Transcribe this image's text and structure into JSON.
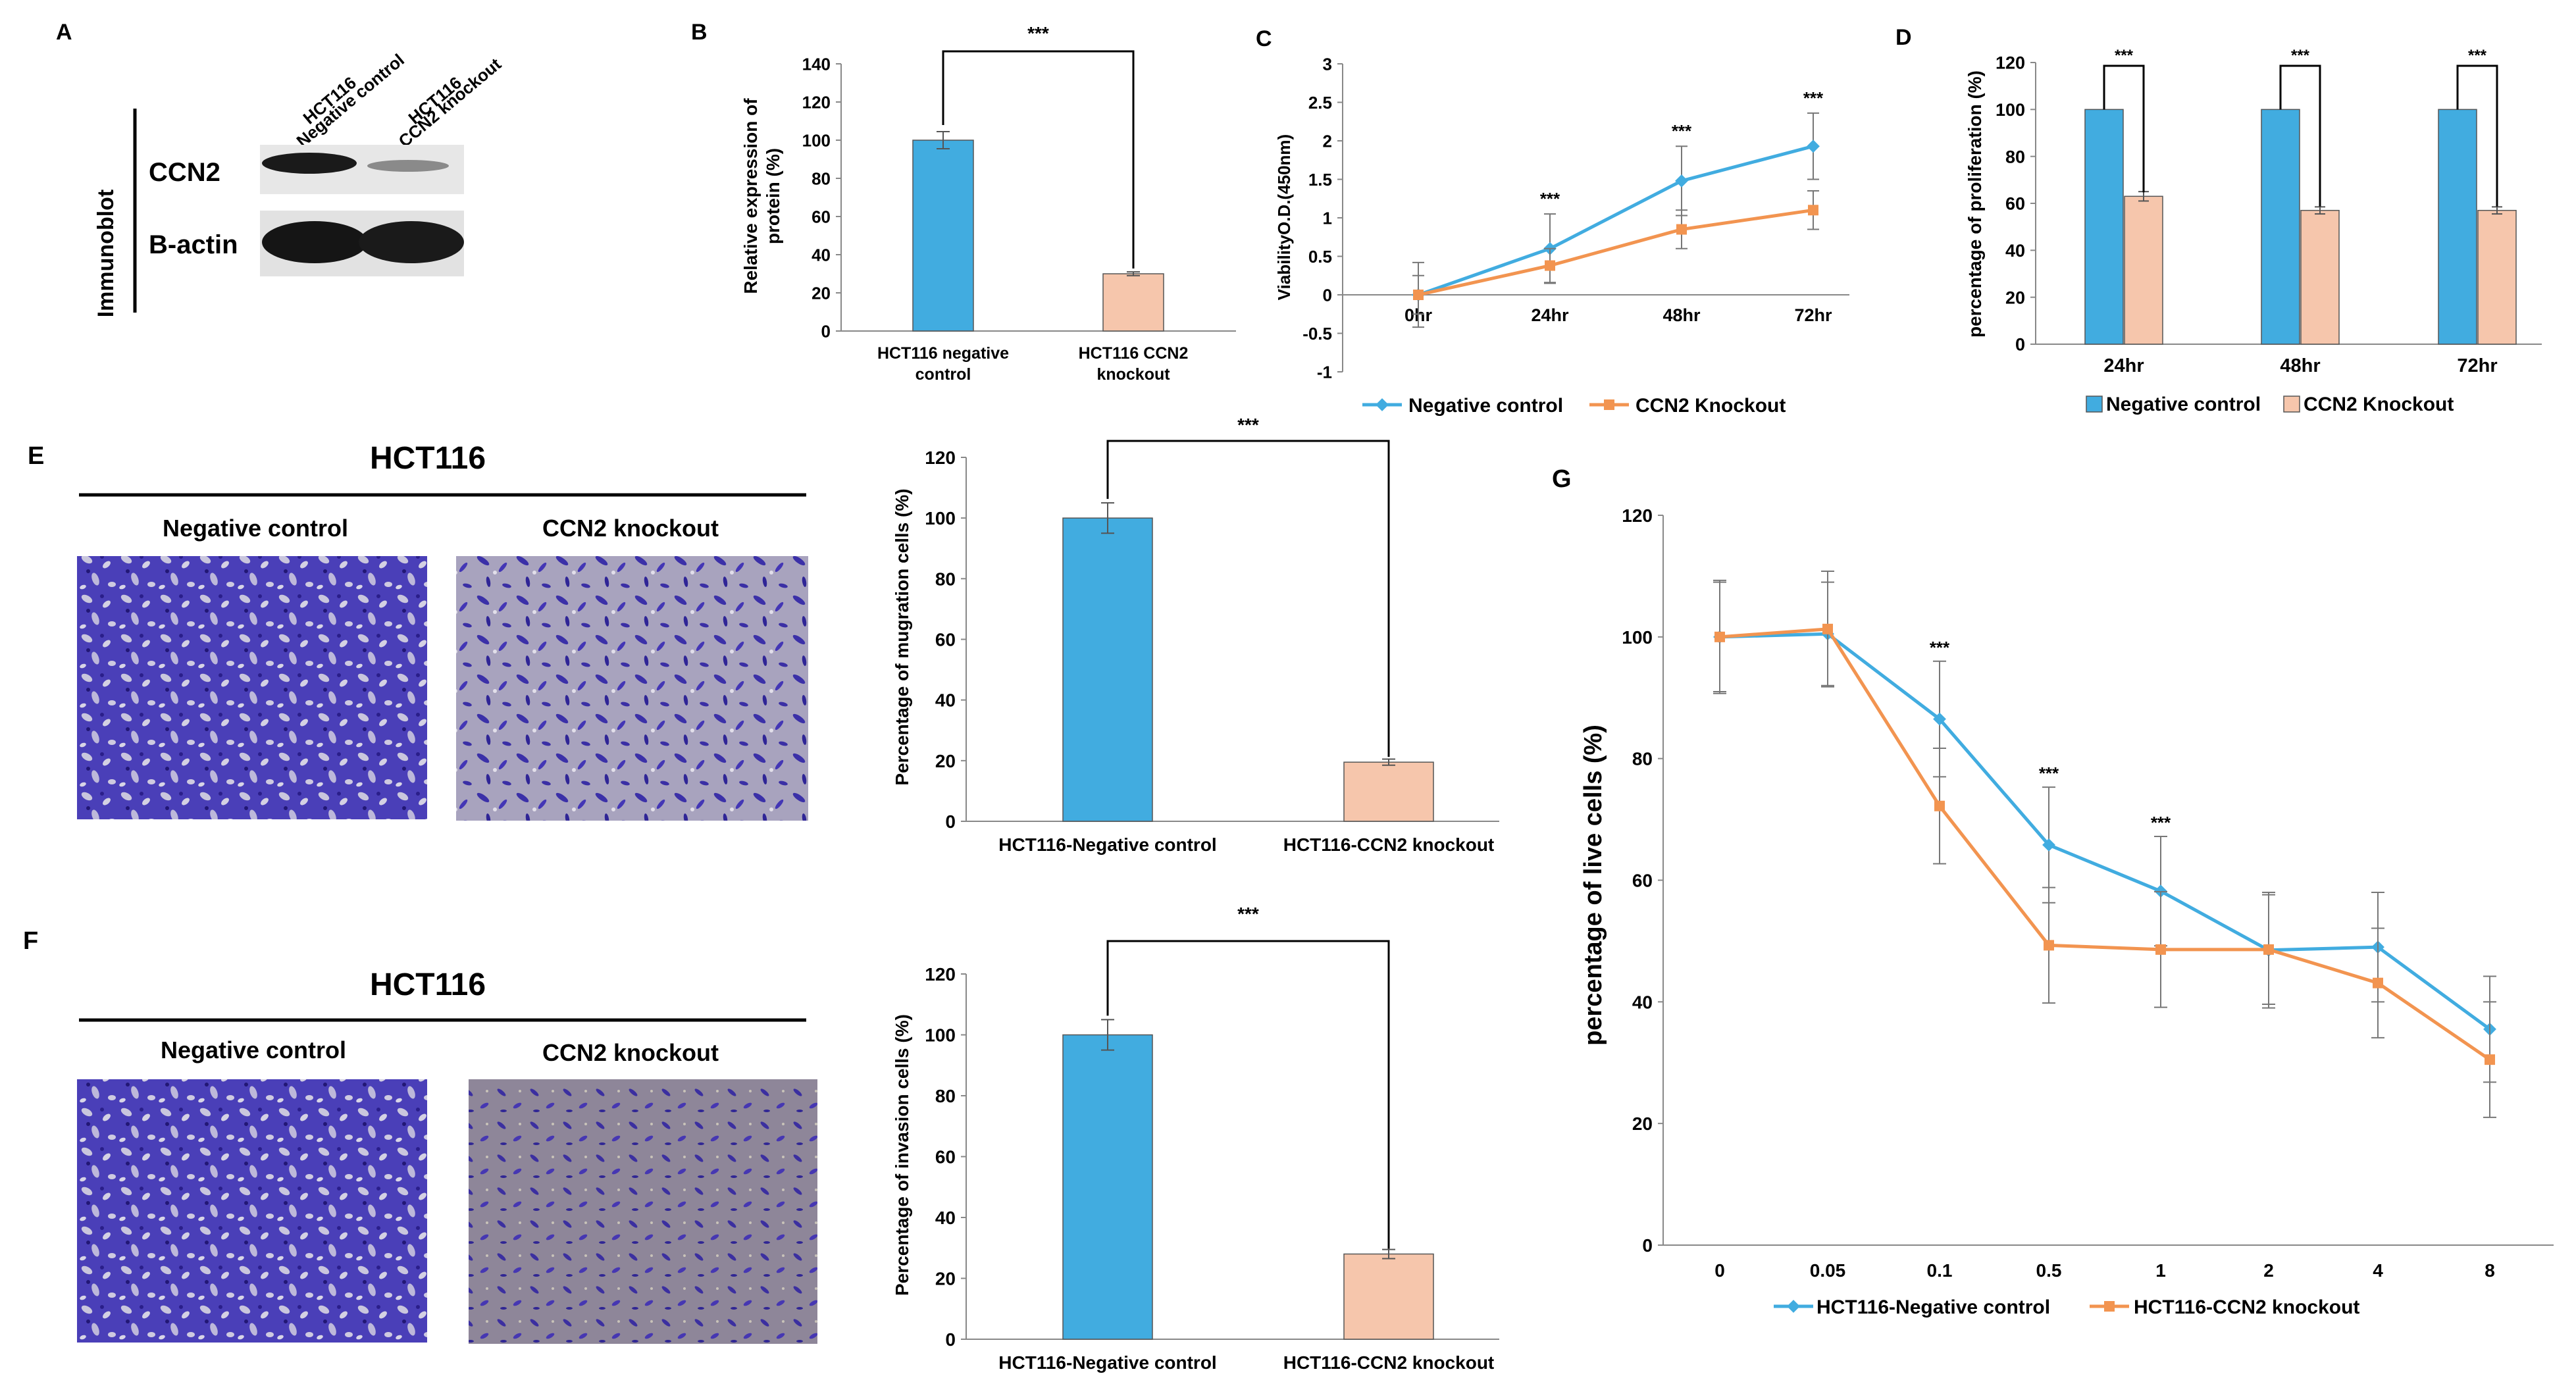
{
  "panels": {
    "a": "A",
    "b": "B",
    "c": "C",
    "d": "D",
    "e": "E",
    "f": "F",
    "g": "G"
  },
  "colors": {
    "blue": "#41ACE0",
    "peach": "#F6C6AC",
    "line_blue": "#41ACE0",
    "line_orange": "#F29450",
    "stain_blue": "#4A3FB8"
  },
  "blot": {
    "vertical_label": "Immunoblot",
    "lanes": [
      {
        "line1": "HCT116",
        "line2": "Negative control"
      },
      {
        "line1": "HCT116",
        "line2": "CCN2 knockout"
      }
    ],
    "rows": [
      "CCN2",
      "B-actin"
    ]
  },
  "images": {
    "e": {
      "title": "HCT116",
      "left_label": "Negative control",
      "right_label": "CCN2 knockout"
    },
    "f": {
      "title": "HCT116",
      "left_label": "Negative control",
      "right_label": "CCN2 knockout"
    }
  },
  "chart_data": [
    {
      "panel": "B",
      "type": "bar",
      "categories": [
        [
          "HCT116 negative",
          "control"
        ],
        [
          "HCT116 CCN2",
          "knockout"
        ]
      ],
      "values": [
        100,
        30
      ],
      "errors": [
        4.5,
        1
      ],
      "ylabel": [
        "Relative expression of",
        "protein (%)"
      ],
      "ylim": [
        0,
        140
      ],
      "yticks": [
        0,
        20,
        40,
        60,
        80,
        100,
        120,
        140
      ],
      "significance": [
        "***"
      ]
    },
    {
      "panel": "C",
      "type": "line",
      "x": [
        "0hr",
        "24hr",
        "48hr",
        "72hr"
      ],
      "series": [
        {
          "name": "Negative control",
          "values": [
            0,
            0.6,
            1.48,
            1.93
          ],
          "errors": [
            0.42,
            0.45,
            0.45,
            0.43
          ]
        },
        {
          "name": "CCN2 Knockout",
          "values": [
            0,
            0.38,
            0.85,
            1.1
          ],
          "errors": [
            0.25,
            0.22,
            0.25,
            0.25
          ]
        }
      ],
      "ylabel": "ViabilityO.D.(450nm)",
      "ylim": [
        -1,
        3
      ],
      "yticks": [
        -1,
        -0.5,
        0,
        0.5,
        1,
        1.5,
        2,
        2.5,
        3
      ],
      "annotations": [
        "***",
        "***",
        "***"
      ]
    },
    {
      "panel": "D",
      "type": "bar",
      "categories": [
        "24hr",
        "48hr",
        "72hr"
      ],
      "series": [
        {
          "name": "Negative control",
          "values": [
            100,
            100,
            100
          ],
          "errors": [
            0,
            0,
            0
          ]
        },
        {
          "name": "CCN2 Knockout",
          "values": [
            63,
            57,
            57
          ],
          "errors": [
            2,
            1.5,
            1.5
          ]
        }
      ],
      "ylabel": "percentage of proliferation (%)",
      "ylim": [
        0,
        120
      ],
      "yticks": [
        0,
        20,
        40,
        60,
        80,
        100,
        120
      ],
      "significance": [
        "***",
        "***",
        "***"
      ]
    },
    {
      "panel": "E",
      "type": "bar",
      "categories": [
        "HCT116-Negative control",
        "HCT116-CCN2 knockout"
      ],
      "values": [
        100,
        19.5
      ],
      "errors": [
        5,
        1
      ],
      "ylabel": "Percentage of mugration cells (%)",
      "ylim": [
        0,
        120
      ],
      "yticks": [
        0,
        20,
        40,
        60,
        80,
        100,
        120
      ],
      "significance": [
        "***"
      ]
    },
    {
      "panel": "F",
      "type": "bar",
      "categories": [
        "HCT116-Negative control",
        "HCT116-CCN2 knockout"
      ],
      "values": [
        100,
        28
      ],
      "errors": [
        5,
        1.5
      ],
      "ylabel": "Percentage of invasion cells (%)",
      "ylim": [
        0,
        120
      ],
      "yticks": [
        0,
        20,
        40,
        60,
        80,
        100,
        120
      ],
      "significance": [
        "***"
      ]
    },
    {
      "panel": "G",
      "type": "line",
      "x": [
        "0",
        "0.05",
        "0.1",
        "0.5",
        "1",
        "2",
        "4",
        "8"
      ],
      "series": [
        {
          "name": "HCT116-Negative control",
          "values": [
            100,
            100.5,
            86.5,
            65.8,
            58.2,
            48.5,
            49,
            35.5
          ],
          "errors": [
            9.3,
            8.5,
            9.5,
            9.5,
            9,
            9.5,
            9,
            8.7
          ]
        },
        {
          "name": "HCT116-CCN2 knockout",
          "values": [
            100,
            101.3,
            72.2,
            49.3,
            48.6,
            48.6,
            43.1,
            30.5
          ],
          "errors": [
            9,
            9.5,
            9.5,
            9.5,
            9.5,
            9,
            9,
            9.5
          ]
        }
      ],
      "ylabel": "percentage of live cells (%)",
      "ylim": [
        0,
        120
      ],
      "yticks": [
        0,
        20,
        40,
        60,
        80,
        100,
        120
      ],
      "annotations": [
        {
          "x": "0.1",
          "text": "***"
        },
        {
          "x": "0.5",
          "text": "***"
        },
        {
          "x": "1",
          "text": "***"
        }
      ]
    }
  ]
}
